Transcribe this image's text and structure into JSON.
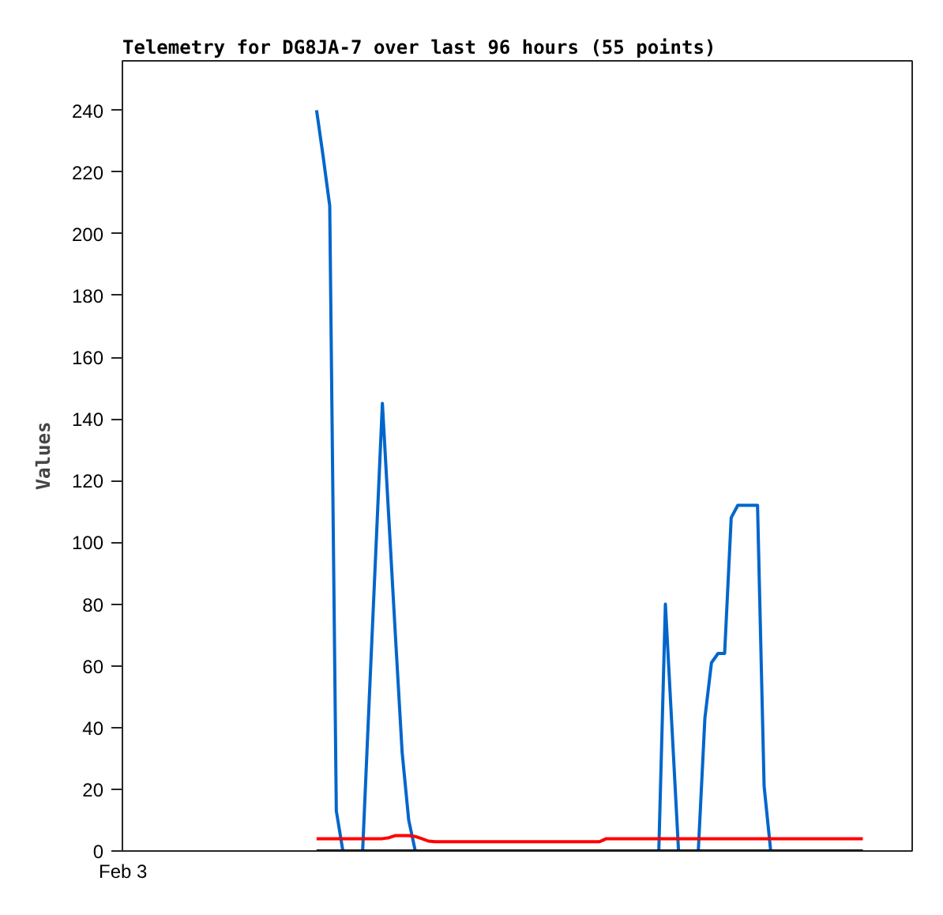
{
  "chart_data": {
    "type": "line",
    "title": "Telemetry for DG8JA-7 over last 96 hours (55 points)",
    "ylabel": "Values",
    "annotations": [
      "Feb 3"
    ],
    "categories": [
      null,
      null,
      null,
      null,
      null,
      null,
      null,
      null,
      null,
      null,
      null,
      null,
      null,
      null,
      null,
      null,
      null,
      null,
      null,
      null,
      null,
      null,
      null,
      null,
      null,
      null,
      null,
      null,
      null,
      null,
      null,
      null,
      null,
      null,
      null,
      null,
      null,
      null,
      null,
      null,
      null,
      null,
      null,
      null,
      null,
      null,
      null,
      null,
      null,
      null,
      null,
      null,
      null,
      null,
      null,
      null,
      null,
      null,
      null,
      null,
      null,
      null,
      null,
      null,
      null,
      null,
      null,
      null,
      null,
      null,
      null,
      null,
      null,
      null,
      null,
      null,
      null,
      null,
      null,
      null,
      null,
      null,
      null,
      null,
      null,
      null,
      null,
      null,
      null,
      null,
      null,
      null,
      null,
      null,
      null,
      null,
      null,
      null,
      null,
      null,
      null,
      null,
      null,
      null,
      null,
      null,
      null,
      null,
      null,
      null,
      null,
      null,
      null,
      null,
      null,
      null,
      null,
      null,
      null,
      null
    ],
    "ylim": [
      0,
      256
    ],
    "yticks": [
      0,
      20,
      40,
      60,
      80,
      100,
      120,
      140,
      160,
      180,
      200,
      220,
      240
    ],
    "grid": false,
    "line_style": "solid",
    "series": [
      {
        "color": "#0066cc",
        "values": [
          null,
          null,
          null,
          null,
          null,
          null,
          null,
          null,
          null,
          null,
          null,
          null,
          null,
          null,
          null,
          null,
          null,
          null,
          null,
          null,
          null,
          null,
          null,
          null,
          null,
          null,
          null,
          null,
          null,
          240,
          225,
          209,
          13,
          0,
          null,
          null,
          0,
          49,
          97,
          145,
          107,
          69,
          32,
          10,
          0,
          null,
          null,
          null,
          null,
          null,
          null,
          null,
          null,
          null,
          null,
          null,
          null,
          null,
          null,
          null,
          null,
          null,
          null,
          null,
          null,
          null,
          null,
          null,
          null,
          null,
          null,
          null,
          null,
          null,
          null,
          null,
          null,
          null,
          null,
          null,
          null,
          0,
          80,
          40,
          0,
          null,
          null,
          0,
          43,
          61,
          64,
          64,
          108,
          112,
          112,
          112,
          112,
          21,
          0,
          null,
          null,
          null,
          null,
          null,
          null,
          null,
          null,
          null,
          null,
          null,
          null,
          null,
          null,
          null,
          null,
          null,
          null,
          null,
          null,
          null
        ]
      },
      {
        "color": "#ff0000",
        "values": [
          null,
          null,
          null,
          null,
          null,
          null,
          null,
          null,
          null,
          null,
          null,
          null,
          null,
          null,
          null,
          null,
          null,
          null,
          null,
          null,
          null,
          null,
          null,
          null,
          null,
          null,
          null,
          null,
          null,
          4,
          4,
          4,
          4,
          4,
          4,
          4,
          4,
          4,
          4,
          4,
          4.3,
          5,
          5,
          5,
          4.7,
          4,
          3.2,
          3,
          3,
          3,
          3,
          3,
          3,
          3,
          3,
          3,
          3,
          3,
          3,
          3,
          3,
          3,
          3,
          3,
          3,
          3,
          3,
          3,
          3,
          3,
          3,
          3,
          3,
          4,
          4,
          4,
          4,
          4,
          4,
          4,
          4,
          4,
          4,
          4,
          4,
          4,
          4,
          4,
          4,
          4,
          4,
          4,
          4,
          4,
          4,
          4,
          4,
          4,
          4,
          4,
          4,
          4,
          4,
          4,
          4,
          4,
          4,
          4,
          4,
          4,
          4,
          4,
          4,
          null,
          null,
          null,
          null,
          null,
          null,
          null
        ]
      },
      {
        "color": "#000000",
        "values": [
          null,
          null,
          null,
          null,
          null,
          null,
          null,
          null,
          null,
          null,
          null,
          null,
          null,
          null,
          null,
          null,
          null,
          null,
          null,
          null,
          null,
          null,
          null,
          null,
          null,
          null,
          null,
          null,
          null,
          0,
          0,
          0,
          0,
          0,
          0,
          0,
          0,
          0,
          0,
          0,
          0,
          0,
          0,
          0,
          0,
          0,
          0,
          0,
          0,
          0,
          0,
          0,
          0,
          0,
          0,
          0,
          0,
          0,
          0,
          0,
          0,
          0,
          0,
          0,
          0,
          0,
          0,
          0,
          0,
          0,
          0,
          0,
          0,
          0,
          0,
          0,
          0,
          0,
          0,
          0,
          0,
          0,
          0,
          0,
          0,
          0,
          0,
          0,
          0,
          0,
          0,
          0,
          0,
          0,
          0,
          0,
          0,
          0,
          0,
          0,
          0,
          0,
          0,
          0,
          0,
          0,
          0,
          0,
          0,
          0,
          0,
          0,
          0,
          null,
          null,
          null,
          null,
          null,
          null,
          null
        ]
      }
    ]
  }
}
